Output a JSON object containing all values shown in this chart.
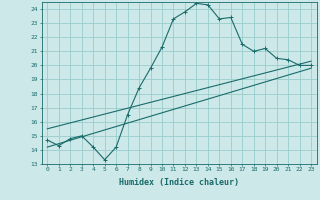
{
  "title": "",
  "xlabel": "Humidex (Indice chaleur)",
  "ylabel": "",
  "bg_color": "#cce8e8",
  "grid_color": "#99cccc",
  "line_color": "#1a6b6b",
  "xlim": [
    -0.5,
    23.5
  ],
  "ylim": [
    13,
    24.5
  ],
  "xticks": [
    0,
    1,
    2,
    3,
    4,
    5,
    6,
    7,
    8,
    9,
    10,
    11,
    12,
    13,
    14,
    15,
    16,
    17,
    18,
    19,
    20,
    21,
    22,
    23
  ],
  "yticks": [
    13,
    14,
    15,
    16,
    17,
    18,
    19,
    20,
    21,
    22,
    23,
    24
  ],
  "main_line_x": [
    0,
    1,
    2,
    3,
    4,
    5,
    6,
    7,
    8,
    9,
    10,
    11,
    12,
    13,
    14,
    15,
    16,
    17,
    18,
    19,
    20,
    21,
    22,
    23
  ],
  "main_line_y": [
    14.7,
    14.3,
    14.8,
    15.0,
    14.2,
    13.3,
    14.2,
    16.5,
    18.4,
    19.8,
    21.3,
    23.3,
    23.8,
    24.4,
    24.3,
    23.3,
    23.4,
    21.5,
    21.0,
    21.2,
    20.5,
    20.4,
    20.0,
    20.0
  ],
  "reg_line1_x": [
    0,
    23
  ],
  "reg_line1_y": [
    15.5,
    20.3
  ],
  "reg_line2_x": [
    0,
    23
  ],
  "reg_line2_y": [
    14.2,
    19.8
  ],
  "marker_size": 2.5,
  "xlabel_fontsize": 6,
  "tick_fontsize": 4.5
}
